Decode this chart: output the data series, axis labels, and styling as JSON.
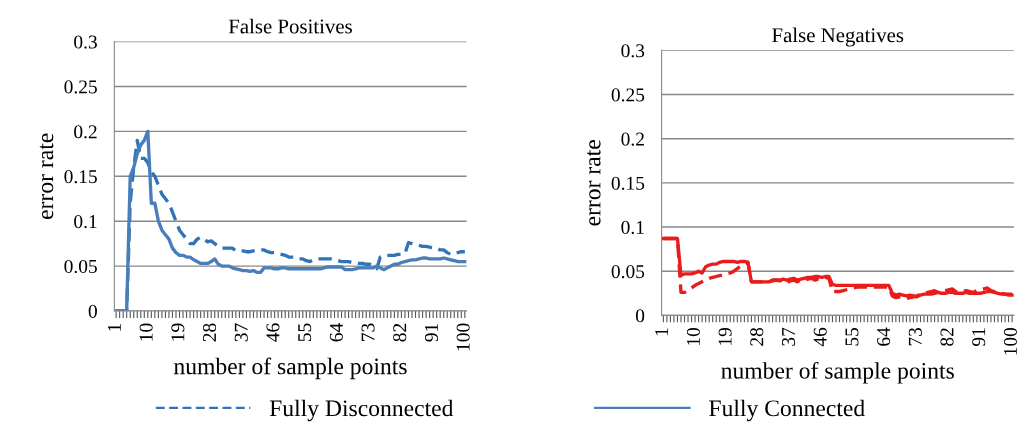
{
  "chart_data": [
    {
      "type": "line",
      "title": "False Positives",
      "xlabel": "number of sample points",
      "ylabel": "error rate",
      "categories": [
        "1",
        null,
        null,
        null,
        null,
        null,
        null,
        null,
        null,
        "10",
        null,
        null,
        null,
        null,
        null,
        null,
        null,
        null,
        "19",
        null,
        null,
        null,
        null,
        null,
        null,
        null,
        null,
        "28",
        null,
        null,
        null,
        null,
        null,
        null,
        null,
        null,
        "37",
        null,
        null,
        null,
        null,
        null,
        null,
        null,
        null,
        "46",
        null,
        null,
        null,
        null,
        null,
        null,
        null,
        null,
        "55",
        null,
        null,
        null,
        null,
        null,
        null,
        null,
        null,
        "64",
        null,
        null,
        null,
        null,
        null,
        null,
        null,
        null,
        "73",
        null,
        null,
        null,
        null,
        null,
        null,
        null,
        null,
        "82",
        null,
        null,
        null,
        null,
        null,
        null,
        null,
        null,
        "91",
        null,
        null,
        null,
        null,
        null,
        null,
        null,
        null,
        "100"
      ],
      "ylim": [
        0,
        0.3
      ],
      "yticks": [
        0,
        0.05,
        0.1,
        0.15,
        0.2,
        0.25,
        0.3
      ],
      "grid": "y",
      "legend": "bottom",
      "series": [
        {
          "name": "Fully Disconnected",
          "color": "#2f73b8",
          "line_style": "dashed",
          "values": [
            0,
            0,
            0,
            0,
            0.12,
            0.16,
            0.19,
            0.17,
            0.17,
            0.165,
            0.155,
            0.15,
            0.14,
            0.13,
            0.125,
            0.12,
            0.11,
            0.1,
            0.09,
            0.085,
            0.08,
            0.075,
            0.075,
            0.08,
            0.082,
            0.08,
            0.077,
            0.078,
            0.075,
            0.072,
            0.07,
            0.07,
            0.07,
            0.07,
            0.067,
            0.067,
            0.067,
            0.066,
            0.066,
            0.067,
            0.067,
            0.068,
            0.068,
            0.066,
            0.065,
            0.065,
            0.064,
            0.063,
            0.062,
            0.06,
            0.06,
            0.06,
            0.058,
            0.058,
            0.056,
            0.055,
            0.057,
            0.058,
            0.058,
            0.058,
            0.058,
            0.058,
            0.057,
            0.056,
            0.055,
            0.055,
            0.055,
            0.054,
            0.054,
            0.053,
            0.053,
            0.052,
            0.052,
            0.05,
            0.047,
            0.06,
            0.062,
            0.062,
            0.062,
            0.062,
            0.063,
            0.063,
            0.064,
            0.076,
            0.075,
            0.074,
            0.073,
            0.072,
            0.072,
            0.071,
            0.07,
            0.07,
            0.068,
            0.068,
            0.065,
            0.063,
            0.064,
            0.065,
            0.066,
            0.066
          ]
        },
        {
          "name": "Fully Connected",
          "color": "#4a7ebb",
          "line_style": "solid",
          "values": [
            0,
            0,
            0,
            0,
            0.15,
            0.16,
            0.175,
            0.185,
            0.19,
            0.2,
            0.12,
            0.12,
            0.1,
            0.09,
            0.085,
            0.08,
            0.07,
            0.065,
            0.062,
            0.062,
            0.06,
            0.06,
            0.057,
            0.055,
            0.053,
            0.053,
            0.053,
            0.055,
            0.058,
            0.052,
            0.05,
            0.05,
            0.05,
            0.048,
            0.047,
            0.046,
            0.045,
            0.045,
            0.044,
            0.045,
            0.043,
            0.043,
            0.048,
            0.048,
            0.048,
            0.047,
            0.047,
            0.048,
            0.048,
            0.047,
            0.047,
            0.047,
            0.047,
            0.047,
            0.047,
            0.047,
            0.047,
            0.047,
            0.047,
            0.048,
            0.049,
            0.049,
            0.049,
            0.049,
            0.049,
            0.046,
            0.046,
            0.046,
            0.047,
            0.048,
            0.048,
            0.048,
            0.048,
            0.048,
            0.05,
            0.048,
            0.046,
            0.048,
            0.05,
            0.052,
            0.052,
            0.054,
            0.055,
            0.056,
            0.057,
            0.057,
            0.058,
            0.059,
            0.059,
            0.058,
            0.058,
            0.058,
            0.058,
            0.059,
            0.058,
            0.057,
            0.056,
            0.055,
            0.055,
            0.055
          ]
        }
      ]
    },
    {
      "type": "line",
      "title": "False Negatives",
      "xlabel": "number of sample points",
      "ylabel": "error rate",
      "categories": [
        "1",
        null,
        null,
        null,
        null,
        null,
        null,
        null,
        null,
        "10",
        null,
        null,
        null,
        null,
        null,
        null,
        null,
        null,
        "19",
        null,
        null,
        null,
        null,
        null,
        null,
        null,
        null,
        "28",
        null,
        null,
        null,
        null,
        null,
        null,
        null,
        null,
        "37",
        null,
        null,
        null,
        null,
        null,
        null,
        null,
        null,
        "46",
        null,
        null,
        null,
        null,
        null,
        null,
        null,
        null,
        "55",
        null,
        null,
        null,
        null,
        null,
        null,
        null,
        null,
        "64",
        null,
        null,
        null,
        null,
        null,
        null,
        null,
        null,
        "73",
        null,
        null,
        null,
        null,
        null,
        null,
        null,
        null,
        "82",
        null,
        null,
        null,
        null,
        null,
        null,
        null,
        null,
        "91",
        null,
        null,
        null,
        null,
        null,
        null,
        null,
        null,
        "100"
      ],
      "ylim": [
        0,
        0.3
      ],
      "yticks": [
        0,
        0.05,
        0.1,
        0.15,
        0.2,
        0.25,
        0.3
      ],
      "grid": "y",
      "series": [
        {
          "color": "#e81c1c",
          "line_style": "dashed",
          "values": [
            0.087,
            0.087,
            0.087,
            0.087,
            0.087,
            0.026,
            0.026,
            0.028,
            0.031,
            0.034,
            0.036,
            0.038,
            0.04,
            0.042,
            0.043,
            0.044,
            0.045,
            0.046,
            0.047,
            0.048,
            0.05,
            0.053,
            0.056,
            0.058,
            0.06,
            0.038,
            0.038,
            0.038,
            0.038,
            0.038,
            0.038,
            0.04,
            0.04,
            0.039,
            0.04,
            0.037,
            0.039,
            0.04,
            0.038,
            0.04,
            0.04,
            0.041,
            0.042,
            0.04,
            0.041,
            0.04,
            0.043,
            0.042,
            0.027,
            0.027,
            0.027,
            0.028,
            0.029,
            0.03,
            0.031,
            0.032,
            0.032,
            0.032,
            0.032,
            0.032,
            0.032,
            0.032,
            0.032,
            0.032,
            0.032,
            0.022,
            0.02,
            0.021,
            0.02,
            0.019,
            0.02,
            0.021,
            0.022,
            0.024,
            0.025,
            0.026,
            0.027,
            0.028,
            0.026,
            0.027,
            0.028,
            0.029,
            0.03,
            0.027,
            0.026,
            0.027,
            0.028,
            0.027,
            0.026,
            0.028,
            0.029,
            0.03,
            0.031,
            0.028,
            0.027,
            0.026,
            0.025,
            0.024,
            0.024,
            0.024
          ]
        },
        {
          "color": "#e81c1c",
          "line_style": "solid",
          "values": [
            0.087,
            0.087,
            0.087,
            0.087,
            0.087,
            0.045,
            0.047,
            0.047,
            0.047,
            0.048,
            0.05,
            0.048,
            0.055,
            0.057,
            0.058,
            0.058,
            0.06,
            0.061,
            0.061,
            0.061,
            0.061,
            0.06,
            0.061,
            0.061,
            0.06,
            0.038,
            0.038,
            0.038,
            0.038,
            0.038,
            0.038,
            0.039,
            0.04,
            0.04,
            0.041,
            0.04,
            0.041,
            0.042,
            0.04,
            0.041,
            0.042,
            0.043,
            0.043,
            0.044,
            0.044,
            0.043,
            0.044,
            0.044,
            0.035,
            0.034,
            0.034,
            0.034,
            0.034,
            0.034,
            0.034,
            0.034,
            0.034,
            0.034,
            0.034,
            0.034,
            0.034,
            0.034,
            0.034,
            0.034,
            0.034,
            0.025,
            0.023,
            0.024,
            0.023,
            0.022,
            0.023,
            0.022,
            0.021,
            0.023,
            0.024,
            0.024,
            0.024,
            0.025,
            0.026,
            0.025,
            0.025,
            0.026,
            0.026,
            0.025,
            0.025,
            0.025,
            0.026,
            0.025,
            0.025,
            0.025,
            0.025,
            0.026,
            0.027,
            0.027,
            0.026,
            0.025,
            0.024,
            0.024,
            0.023,
            0.023
          ]
        }
      ]
    }
  ]
}
